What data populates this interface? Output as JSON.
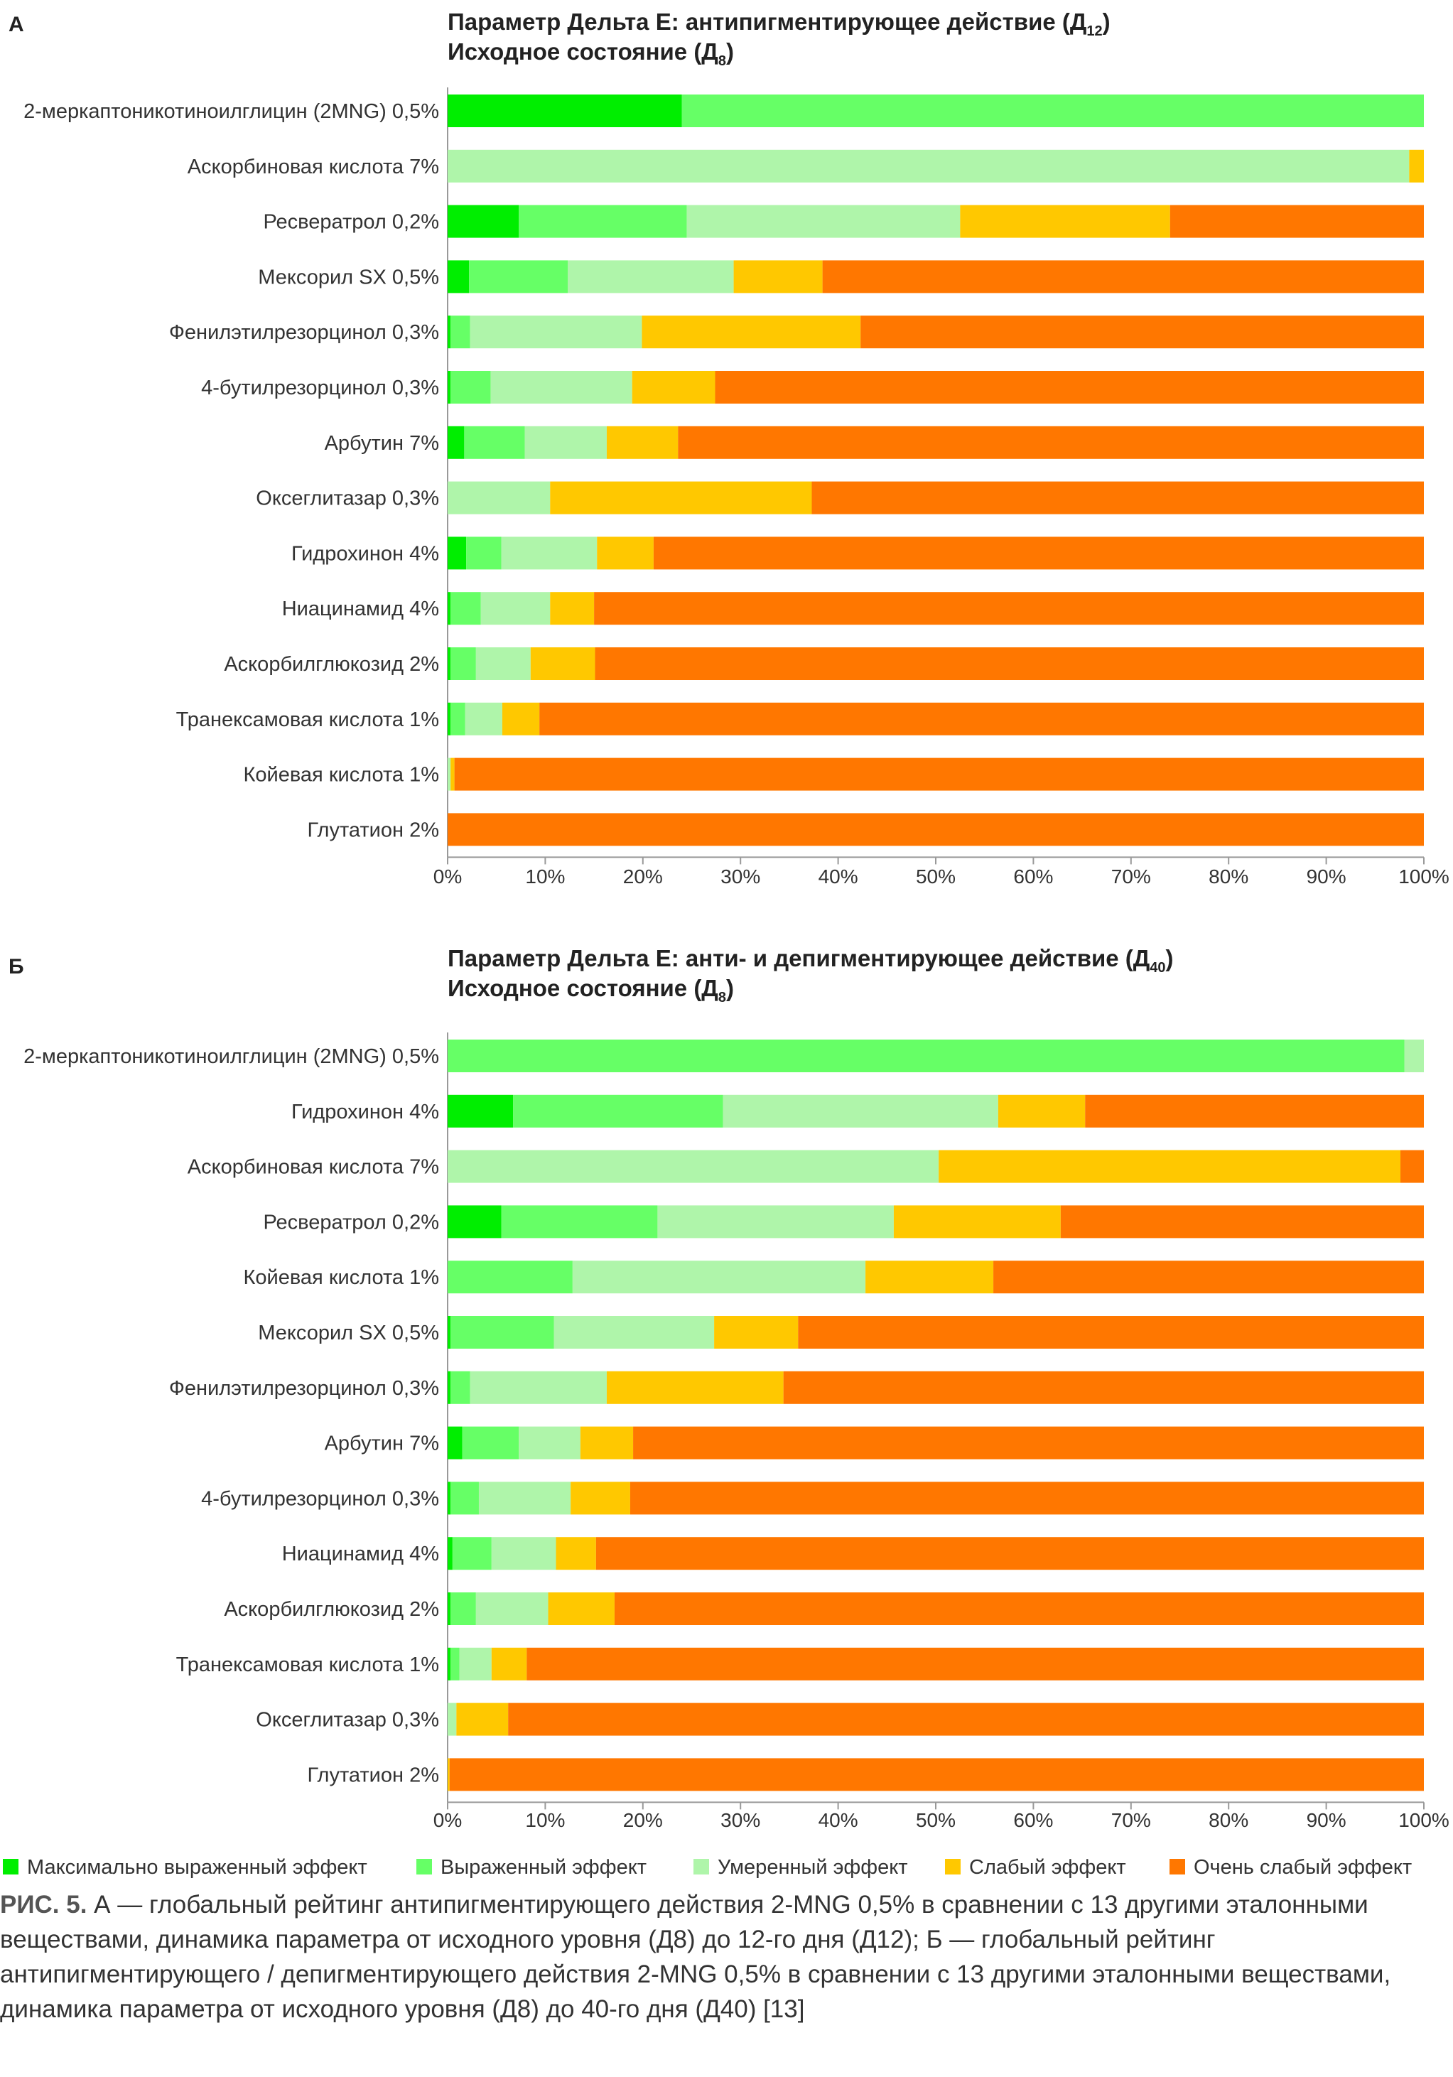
{
  "colors": {
    "max": "#00ee00",
    "strong": "#66ff66",
    "moderate": "#aff5aa",
    "weak": "#ffc800",
    "very_weak": "#ff7700"
  },
  "legend": [
    {
      "key": "max",
      "label": "Максимально выраженный эффект"
    },
    {
      "key": "strong",
      "label": "Выраженный эффект"
    },
    {
      "key": "moderate",
      "label": "Умеренный эффект"
    },
    {
      "key": "weak",
      "label": "Слабый эффект"
    },
    {
      "key": "very_weak",
      "label": "Очень слабый эффект"
    }
  ],
  "chart_data": [
    {
      "type": "bar",
      "stacked": true,
      "orientation": "horizontal",
      "panel": "А",
      "title": "Параметр Дельта Е: антипигментирующее действие (Д",
      "title_sub": "12",
      "title_end": ")",
      "subtitle": "Исходное состояние (Д",
      "subtitle_sub": "8",
      "subtitle_end": ")",
      "xlim": [
        0,
        100
      ],
      "xticks": [
        "0%",
        "10%",
        "20%",
        "30%",
        "40%",
        "50%",
        "60%",
        "70%",
        "80%",
        "90%",
        "100%"
      ],
      "rows": [
        {
          "label": "2-меркаптоникотиноилглицин (2MNG) 0,5%",
          "values": [
            24,
            76,
            0,
            0,
            0
          ]
        },
        {
          "label": "Аскорбиновая кислота 7%",
          "values": [
            0,
            0,
            98.5,
            1.5,
            0
          ]
        },
        {
          "label": "Ресвератрол 0,2%",
          "values": [
            7.3,
            17.2,
            28,
            21.5,
            26
          ]
        },
        {
          "label": "Мексорил SX 0,5%",
          "values": [
            2.2,
            10.1,
            17,
            9.1,
            61.6
          ]
        },
        {
          "label": "Фенилэтилрезорцинол 0,3%",
          "values": [
            0.3,
            2,
            17.6,
            22.4,
            57.7
          ]
        },
        {
          "label": "4-бутилрезорцинол 0,3%",
          "values": [
            0.3,
            4.1,
            14.5,
            8.5,
            72.6
          ]
        },
        {
          "label": "Арбутин 7%",
          "values": [
            1.7,
            6.2,
            8.4,
            7.3,
            76.4
          ]
        },
        {
          "label": "Оксеглитазар 0,3%",
          "values": [
            0,
            0,
            10.5,
            26.8,
            62.7
          ]
        },
        {
          "label": "Гидрохинон 4%",
          "values": [
            1.9,
            3.6,
            9.8,
            5.8,
            78.9
          ]
        },
        {
          "label": "Ниацинамид 4%",
          "values": [
            0.3,
            3.1,
            7.1,
            4.5,
            85
          ]
        },
        {
          "label": "Аскорбилглюкозид 2%",
          "values": [
            0.3,
            2.6,
            5.6,
            6.6,
            84.9
          ]
        },
        {
          "label": "Транексамовая кислота 1%",
          "values": [
            0.3,
            1.5,
            3.8,
            3.8,
            90.6
          ]
        },
        {
          "label": "Койевая кислота 1%",
          "values": [
            0,
            0,
            0.3,
            0.4,
            99.3
          ]
        },
        {
          "label": "Глутатион 2%",
          "values": [
            0,
            0,
            0,
            0,
            100
          ]
        }
      ]
    },
    {
      "type": "bar",
      "stacked": true,
      "orientation": "horizontal",
      "panel": "Б",
      "title": "Параметр Дельта Е: анти- и депигментирующее действие (Д",
      "title_sub": "40",
      "title_end": ")",
      "subtitle": "Исходное состояние (Д",
      "subtitle_sub": "8",
      "subtitle_end": ")",
      "xlim": [
        0,
        100
      ],
      "xticks": [
        "0%",
        "10%",
        "20%",
        "30%",
        "40%",
        "50%",
        "60%",
        "70%",
        "80%",
        "90%",
        "100%"
      ],
      "rows": [
        {
          "label": "2-меркаптоникотиноилглицин (2MNG) 0,5%",
          "values": [
            0,
            98,
            2,
            0,
            0
          ]
        },
        {
          "label": "Гидрохинон 4%",
          "values": [
            6.7,
            21.5,
            28.2,
            8.9,
            34.7
          ]
        },
        {
          "label": "Аскорбиновая кислота 7%",
          "values": [
            0,
            0,
            50.3,
            47.3,
            2.4
          ]
        },
        {
          "label": "Ресвератрол 0,2%",
          "values": [
            5.5,
            16,
            24.2,
            17.1,
            37.2
          ]
        },
        {
          "label": "Койевая кислота 1%",
          "values": [
            0,
            12.8,
            30,
            13.1,
            44.1
          ]
        },
        {
          "label": "Мексорил SX 0,5%",
          "values": [
            0.3,
            10.6,
            16.4,
            8.6,
            64.1
          ]
        },
        {
          "label": "Фенилэтилрезорцинол 0,3%",
          "values": [
            0.3,
            2,
            14,
            18.1,
            65.6
          ]
        },
        {
          "label": "Арбутин 7%",
          "values": [
            1.5,
            5.8,
            6.3,
            5.4,
            81
          ]
        },
        {
          "label": "4-бутилрезорцинол 0,3%",
          "values": [
            0.3,
            2.9,
            9.4,
            6.1,
            81.3
          ]
        },
        {
          "label": "Ниацинамид 4%",
          "values": [
            0.5,
            4,
            6.6,
            4.1,
            84.8
          ]
        },
        {
          "label": "Аскорбилглюкозид 2%",
          "values": [
            0.3,
            2.6,
            7.4,
            6.8,
            82.9
          ]
        },
        {
          "label": "Транексамовая кислота 1%",
          "values": [
            0.3,
            0.9,
            3.3,
            3.6,
            91.9
          ]
        },
        {
          "label": "Оксеглитазар 0,3%",
          "values": [
            0,
            0,
            0.9,
            5.3,
            93.8
          ]
        },
        {
          "label": "Глутатион 2%",
          "values": [
            0,
            0,
            0,
            0.2,
            99.8
          ]
        }
      ]
    }
  ],
  "caption": {
    "label": "РИС. 5.",
    "text": " А — глобальный рейтинг антипигментирующего действия 2-MNG 0,5% в сравнении с 13 другими эта­лонными веществами, динамика параметра от исходного уровня (Д8) до 12-го дня (Д12); Б — глобальный рей­тинг антипигментирующего / депигментирующего действия 2-MNG 0,5% в сравнении с 13 другими эталонными веществами, динамика параметра от исходного уровня (Д8) до 40-го дня (Д40) [13]"
  }
}
